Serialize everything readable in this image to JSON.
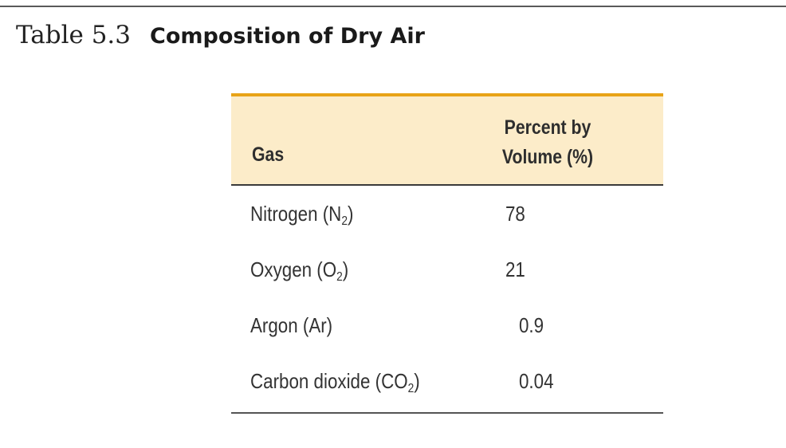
{
  "caption": {
    "label": "Table 5.3",
    "title": "Composition of Dry Air"
  },
  "table": {
    "headers": {
      "gas": "Gas",
      "percent_line1": "Percent by",
      "percent_line2": "Volume (%)"
    },
    "rows": [
      {
        "gas": "Nitrogen (N",
        "sub": "2",
        "close": ")",
        "percent": "78"
      },
      {
        "gas": "Oxygen (O",
        "sub": "2",
        "close": ")",
        "percent": "21"
      },
      {
        "gas": "Argon (Ar)",
        "sub": "",
        "close": "",
        "percent": "0.9"
      },
      {
        "gas": "Carbon dioxide (CO",
        "sub": "2",
        "close": ")",
        "percent": "0.04"
      }
    ]
  },
  "colors": {
    "accent_rule": "#e8a317",
    "header_fill": "#fcecc9",
    "rule": "#3a3a3a"
  }
}
